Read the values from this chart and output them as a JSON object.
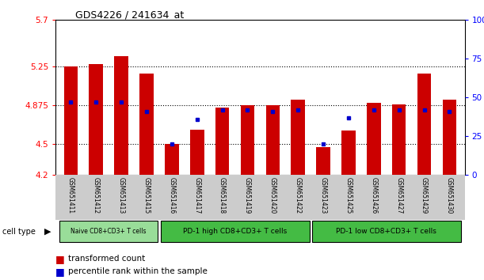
{
  "title": "GDS4226 / 241634_at",
  "samples": [
    "GSM651411",
    "GSM651412",
    "GSM651413",
    "GSM651415",
    "GSM651416",
    "GSM651417",
    "GSM651418",
    "GSM651419",
    "GSM651420",
    "GSM651422",
    "GSM651423",
    "GSM651425",
    "GSM651426",
    "GSM651427",
    "GSM651429",
    "GSM651430"
  ],
  "red_values": [
    5.25,
    5.27,
    5.35,
    5.18,
    4.5,
    4.64,
    4.85,
    4.87,
    4.87,
    4.93,
    4.47,
    4.63,
    4.9,
    4.88,
    5.18,
    4.93
  ],
  "blue_percentiles": [
    47,
    47,
    47,
    41,
    20,
    36,
    42,
    42,
    41,
    42,
    20,
    37,
    42,
    42,
    42,
    41
  ],
  "ymin": 4.2,
  "ymax": 5.7,
  "yticks_left": [
    4.2,
    4.5,
    4.875,
    5.25,
    5.7
  ],
  "yticks_right": [
    0,
    25,
    50,
    75,
    100
  ],
  "group_configs": [
    {
      "start": 0,
      "end": 3,
      "label": "Naive CD8+CD3+ T cells",
      "color": "#99dd99"
    },
    {
      "start": 4,
      "end": 9,
      "label": "PD-1 high CD8+CD3+ T cells",
      "color": "#44bb44"
    },
    {
      "start": 10,
      "end": 15,
      "label": "PD-1 low CD8+CD3+ T cells",
      "color": "#44bb44"
    }
  ],
  "bar_color": "#cc0000",
  "dot_color": "#0000cc",
  "label_bg_color": "#cccccc",
  "legend_items": [
    {
      "label": "transformed count",
      "color": "#cc0000"
    },
    {
      "label": "percentile rank within the sample",
      "color": "#0000cc"
    }
  ]
}
